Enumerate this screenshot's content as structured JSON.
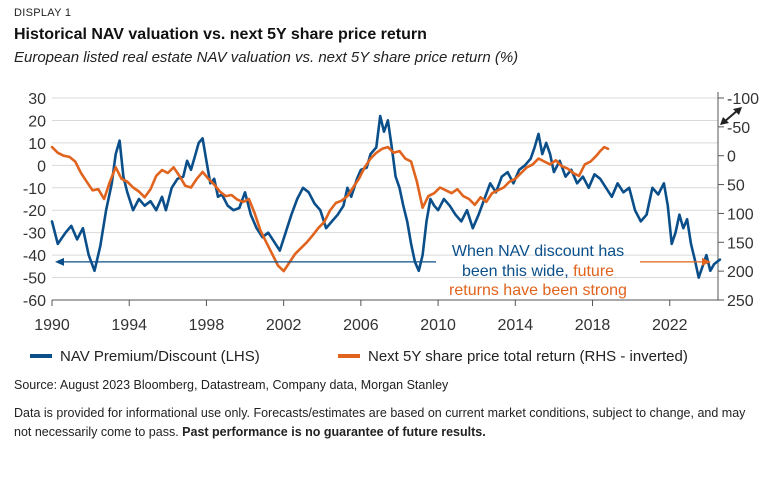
{
  "header": {
    "display_label": "DISPLAY 1",
    "title": "Historical NAV valuation vs. next 5Y share price return",
    "subtitle": "European listed real estate NAV valuation vs. next 5Y share price return (%)"
  },
  "chart_data": {
    "type": "line",
    "x_range": [
      1990,
      2024.5
    ],
    "x_ticks": [
      1990,
      1994,
      1998,
      2002,
      2006,
      2010,
      2014,
      2018,
      2022
    ],
    "left_axis": {
      "ticks": [
        30,
        20,
        10,
        0,
        -10,
        -20,
        -30,
        -40,
        -50,
        -60
      ],
      "ylim": [
        -60,
        30
      ]
    },
    "right_axis": {
      "ticks": [
        -100,
        -50,
        0,
        50,
        100,
        150,
        200,
        250
      ],
      "ylim": [
        -100,
        250
      ],
      "inverted": true
    },
    "series": [
      {
        "name": "NAV Premium/Discount (LHS)",
        "axis": "left",
        "color": "#0b4f8a",
        "points": [
          [
            1990.0,
            -25
          ],
          [
            1990.3,
            -35
          ],
          [
            1990.7,
            -30
          ],
          [
            1991.0,
            -27
          ],
          [
            1991.3,
            -33
          ],
          [
            1991.6,
            -28
          ],
          [
            1991.9,
            -40
          ],
          [
            1992.2,
            -47
          ],
          [
            1992.5,
            -36
          ],
          [
            1992.8,
            -20
          ],
          [
            1993.1,
            -8
          ],
          [
            1993.3,
            5
          ],
          [
            1993.5,
            11
          ],
          [
            1993.7,
            -5
          ],
          [
            1993.9,
            -12
          ],
          [
            1994.2,
            -20
          ],
          [
            1994.5,
            -15
          ],
          [
            1994.8,
            -18
          ],
          [
            1995.1,
            -16
          ],
          [
            1995.4,
            -20
          ],
          [
            1995.7,
            -14
          ],
          [
            1995.9,
            -20
          ],
          [
            1996.2,
            -10
          ],
          [
            1996.5,
            -6
          ],
          [
            1996.8,
            -5
          ],
          [
            1997.0,
            2
          ],
          [
            1997.2,
            -2
          ],
          [
            1997.4,
            4
          ],
          [
            1997.6,
            10
          ],
          [
            1997.8,
            12
          ],
          [
            1998.0,
            2
          ],
          [
            1998.2,
            -8
          ],
          [
            1998.4,
            -6
          ],
          [
            1998.6,
            -14
          ],
          [
            1998.8,
            -13
          ],
          [
            1999.1,
            -18
          ],
          [
            1999.4,
            -20
          ],
          [
            1999.7,
            -19
          ],
          [
            2000.0,
            -12
          ],
          [
            2000.3,
            -22
          ],
          [
            2000.6,
            -28
          ],
          [
            2000.9,
            -32
          ],
          [
            2001.2,
            -30
          ],
          [
            2001.5,
            -34
          ],
          [
            2001.8,
            -38
          ],
          [
            2002.1,
            -30
          ],
          [
            2002.4,
            -22
          ],
          [
            2002.7,
            -15
          ],
          [
            2003.0,
            -10
          ],
          [
            2003.3,
            -12
          ],
          [
            2003.6,
            -17
          ],
          [
            2003.9,
            -20
          ],
          [
            2004.2,
            -28
          ],
          [
            2004.5,
            -25
          ],
          [
            2004.8,
            -22
          ],
          [
            2005.1,
            -18
          ],
          [
            2005.3,
            -10
          ],
          [
            2005.5,
            -14
          ],
          [
            2005.8,
            -6
          ],
          [
            2006.0,
            -2
          ],
          [
            2006.3,
            -1
          ],
          [
            2006.5,
            5
          ],
          [
            2006.8,
            8
          ],
          [
            2007.0,
            22
          ],
          [
            2007.2,
            15
          ],
          [
            2007.4,
            20
          ],
          [
            2007.6,
            8
          ],
          [
            2007.8,
            -5
          ],
          [
            2008.0,
            -10
          ],
          [
            2008.2,
            -18
          ],
          [
            2008.4,
            -25
          ],
          [
            2008.6,
            -35
          ],
          [
            2008.8,
            -43
          ],
          [
            2009.0,
            -47
          ],
          [
            2009.2,
            -40
          ],
          [
            2009.4,
            -25
          ],
          [
            2009.6,
            -15
          ],
          [
            2009.8,
            -18
          ],
          [
            2010.0,
            -20
          ],
          [
            2010.3,
            -15
          ],
          [
            2010.6,
            -18
          ],
          [
            2010.9,
            -22
          ],
          [
            2011.2,
            -25
          ],
          [
            2011.5,
            -20
          ],
          [
            2011.8,
            -28
          ],
          [
            2012.1,
            -22
          ],
          [
            2012.4,
            -15
          ],
          [
            2012.7,
            -8
          ],
          [
            2013.0,
            -12
          ],
          [
            2013.3,
            -5
          ],
          [
            2013.6,
            -3
          ],
          [
            2013.9,
            -8
          ],
          [
            2014.2,
            -2
          ],
          [
            2014.5,
            0
          ],
          [
            2014.8,
            3
          ],
          [
            2015.0,
            8
          ],
          [
            2015.2,
            14
          ],
          [
            2015.4,
            5
          ],
          [
            2015.6,
            10
          ],
          [
            2015.8,
            5
          ],
          [
            2016.0,
            -3
          ],
          [
            2016.3,
            2
          ],
          [
            2016.6,
            -5
          ],
          [
            2016.9,
            -2
          ],
          [
            2017.2,
            -8
          ],
          [
            2017.5,
            -5
          ],
          [
            2017.8,
            -10
          ],
          [
            2018.1,
            -4
          ],
          [
            2018.4,
            -6
          ],
          [
            2018.7,
            -10
          ],
          [
            2019.0,
            -14
          ],
          [
            2019.3,
            -8
          ],
          [
            2019.6,
            -12
          ],
          [
            2019.9,
            -10
          ],
          [
            2020.2,
            -20
          ],
          [
            2020.5,
            -25
          ],
          [
            2020.8,
            -22
          ],
          [
            2021.1,
            -10
          ],
          [
            2021.4,
            -13
          ],
          [
            2021.7,
            -8
          ],
          [
            2021.9,
            -18
          ],
          [
            2022.1,
            -35
          ],
          [
            2022.3,
            -30
          ],
          [
            2022.5,
            -22
          ],
          [
            2022.7,
            -28
          ],
          [
            2022.9,
            -24
          ],
          [
            2023.1,
            -35
          ],
          [
            2023.3,
            -42
          ],
          [
            2023.5,
            -50
          ],
          [
            2023.7,
            -45
          ],
          [
            2023.9,
            -40
          ],
          [
            2024.1,
            -47
          ],
          [
            2024.3,
            -44
          ],
          [
            2024.6,
            -42
          ]
        ]
      },
      {
        "name": "Next 5Y share price total return (RHS - inverted)",
        "axis": "right",
        "color": "#e0631e",
        "points": [
          [
            1990.0,
            -15
          ],
          [
            1990.3,
            -5
          ],
          [
            1990.6,
            0
          ],
          [
            1990.9,
            2
          ],
          [
            1991.2,
            10
          ],
          [
            1991.5,
            30
          ],
          [
            1991.8,
            45
          ],
          [
            1992.1,
            60
          ],
          [
            1992.4,
            58
          ],
          [
            1992.7,
            75
          ],
          [
            1993.0,
            45
          ],
          [
            1993.3,
            20
          ],
          [
            1993.6,
            40
          ],
          [
            1993.9,
            45
          ],
          [
            1994.2,
            55
          ],
          [
            1994.5,
            62
          ],
          [
            1994.8,
            72
          ],
          [
            1995.1,
            58
          ],
          [
            1995.4,
            35
          ],
          [
            1995.7,
            25
          ],
          [
            1996.0,
            30
          ],
          [
            1996.3,
            20
          ],
          [
            1996.6,
            35
          ],
          [
            1996.9,
            52
          ],
          [
            1997.2,
            55
          ],
          [
            1997.5,
            40
          ],
          [
            1997.8,
            28
          ],
          [
            1998.1,
            40
          ],
          [
            1998.4,
            50
          ],
          [
            1998.7,
            62
          ],
          [
            1999.0,
            70
          ],
          [
            1999.3,
            68
          ],
          [
            1999.6,
            76
          ],
          [
            1999.9,
            80
          ],
          [
            2000.2,
            75
          ],
          [
            2000.5,
            100
          ],
          [
            2000.8,
            130
          ],
          [
            2001.1,
            150
          ],
          [
            2001.4,
            170
          ],
          [
            2001.7,
            190
          ],
          [
            2002.0,
            200
          ],
          [
            2002.3,
            185
          ],
          [
            2002.6,
            170
          ],
          [
            2002.9,
            160
          ],
          [
            2003.2,
            150
          ],
          [
            2003.5,
            138
          ],
          [
            2003.8,
            125
          ],
          [
            2004.1,
            115
          ],
          [
            2004.4,
            95
          ],
          [
            2004.7,
            82
          ],
          [
            2005.0,
            78
          ],
          [
            2005.3,
            70
          ],
          [
            2005.6,
            55
          ],
          [
            2005.9,
            40
          ],
          [
            2006.2,
            20
          ],
          [
            2006.5,
            5
          ],
          [
            2006.8,
            -5
          ],
          [
            2007.1,
            -12
          ],
          [
            2007.4,
            -15
          ],
          [
            2007.7,
            -5
          ],
          [
            2008.0,
            -8
          ],
          [
            2008.3,
            5
          ],
          [
            2008.6,
            10
          ],
          [
            2008.9,
            45
          ],
          [
            2009.2,
            90
          ],
          [
            2009.5,
            70
          ],
          [
            2009.8,
            65
          ],
          [
            2010.1,
            55
          ],
          [
            2010.4,
            60
          ],
          [
            2010.7,
            65
          ],
          [
            2011.0,
            58
          ],
          [
            2011.3,
            70
          ],
          [
            2011.6,
            75
          ],
          [
            2011.9,
            85
          ],
          [
            2012.2,
            72
          ],
          [
            2012.5,
            80
          ],
          [
            2012.8,
            65
          ],
          [
            2013.1,
            60
          ],
          [
            2013.4,
            55
          ],
          [
            2013.7,
            45
          ],
          [
            2014.0,
            40
          ],
          [
            2014.3,
            30
          ],
          [
            2014.6,
            20
          ],
          [
            2014.9,
            15
          ],
          [
            2015.2,
            5
          ],
          [
            2015.5,
            10
          ],
          [
            2015.8,
            15
          ],
          [
            2016.1,
            8
          ],
          [
            2016.4,
            18
          ],
          [
            2016.7,
            22
          ],
          [
            2017.0,
            30
          ],
          [
            2017.3,
            35
          ],
          [
            2017.6,
            15
          ],
          [
            2017.9,
            10
          ],
          [
            2018.2,
            0
          ],
          [
            2018.4,
            -8
          ],
          [
            2018.6,
            -15
          ],
          [
            2018.8,
            -12
          ]
        ]
      }
    ],
    "annotations": {
      "line1": "When NAV discount has",
      "line2_a": "been this wide,",
      "line2_b": "future",
      "line3": "returns have been strong",
      "reference_level": -43
    }
  },
  "legend": {
    "item1": "NAV Premium/Discount (LHS)",
    "item2": "Next 5Y share price total return (RHS - inverted)"
  },
  "footer": {
    "source": "Source: August 2023 Bloomberg, Datastream, Company data, Morgan Stanley",
    "disclaimer_plain": "Data is provided for informational use only. Forecasts/estimates are based on current market conditions, subject to change, and may not necessarily come to pass.",
    "disclaimer_bold": "Past performance is no guarantee of future results."
  }
}
